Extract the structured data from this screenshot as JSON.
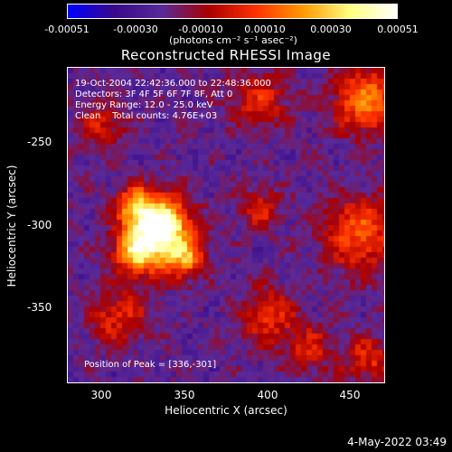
{
  "colorbar": {
    "ticks": [
      "-0.00051",
      "-0.00030",
      "-0.00010",
      "0.00010",
      "0.00030",
      "0.00051"
    ],
    "tick_values": [
      -0.00051,
      -0.0003,
      -0.0001,
      0.0001,
      0.0003,
      0.00051
    ],
    "range": [
      -0.00051,
      0.00051
    ],
    "unit": "(photons cm⁻² s⁻¹ asec⁻²)",
    "colors": [
      "#0000ff",
      "#3a0a8a",
      "#5a2a9a",
      "#aa0000",
      "#ff3300",
      "#ff9900",
      "#ffff80",
      "#ffffff"
    ]
  },
  "chart_data": {
    "type": "heatmap",
    "title": "Reconstructed RHESSI Image",
    "xlabel": "Heliocentric X (arcsec)",
    "ylabel": "Heliocentric Y (arcsec)",
    "xlim": [
      280,
      471
    ],
    "ylim": [
      -396,
      -205
    ],
    "x_ticks": [
      "300",
      "350",
      "400",
      "450"
    ],
    "x_tick_values": [
      300,
      350,
      400,
      450
    ],
    "y_ticks": [
      "-250",
      "-300",
      "-350"
    ],
    "y_tick_values": [
      -250,
      -300,
      -350
    ],
    "peak": [
      336,
      -301
    ],
    "sources": [
      {
        "x": 336,
        "y": -300,
        "sigma": 12,
        "amp": 1.0
      },
      {
        "x": 322,
        "y": -316,
        "sigma": 10,
        "amp": 0.7
      },
      {
        "x": 350,
        "y": -320,
        "sigma": 9,
        "amp": 0.55
      },
      {
        "x": 320,
        "y": -288,
        "sigma": 8,
        "amp": 0.5
      },
      {
        "x": 460,
        "y": -225,
        "sigma": 14,
        "amp": 0.55
      },
      {
        "x": 455,
        "y": -305,
        "sigma": 16,
        "amp": 0.45
      },
      {
        "x": 395,
        "y": -225,
        "sigma": 12,
        "amp": 0.35
      },
      {
        "x": 310,
        "y": -355,
        "sigma": 12,
        "amp": 0.35
      },
      {
        "x": 395,
        "y": -290,
        "sigma": 9,
        "amp": 0.3
      },
      {
        "x": 400,
        "y": -355,
        "sigma": 12,
        "amp": 0.35
      },
      {
        "x": 460,
        "y": -380,
        "sigma": 10,
        "amp": 0.35
      },
      {
        "x": 425,
        "y": -375,
        "sigma": 10,
        "amp": 0.3
      },
      {
        "x": 300,
        "y": -240,
        "sigma": 10,
        "amp": 0.3
      }
    ],
    "annotations": {
      "time": "19-Oct-2004 22:42:36.000 to 22:48:36.000",
      "detectors": "Detectors: 3F 4F 5F 6F 7F 8F, Att 0",
      "energy": "Energy Range: 12.0 - 25.0 keV",
      "clean": "Clean    Total counts: 4.76E+03",
      "peak_label": "Position of Peak = [336,-301]"
    }
  },
  "footer": {
    "timestamp": "4-May-2022 03:49"
  }
}
